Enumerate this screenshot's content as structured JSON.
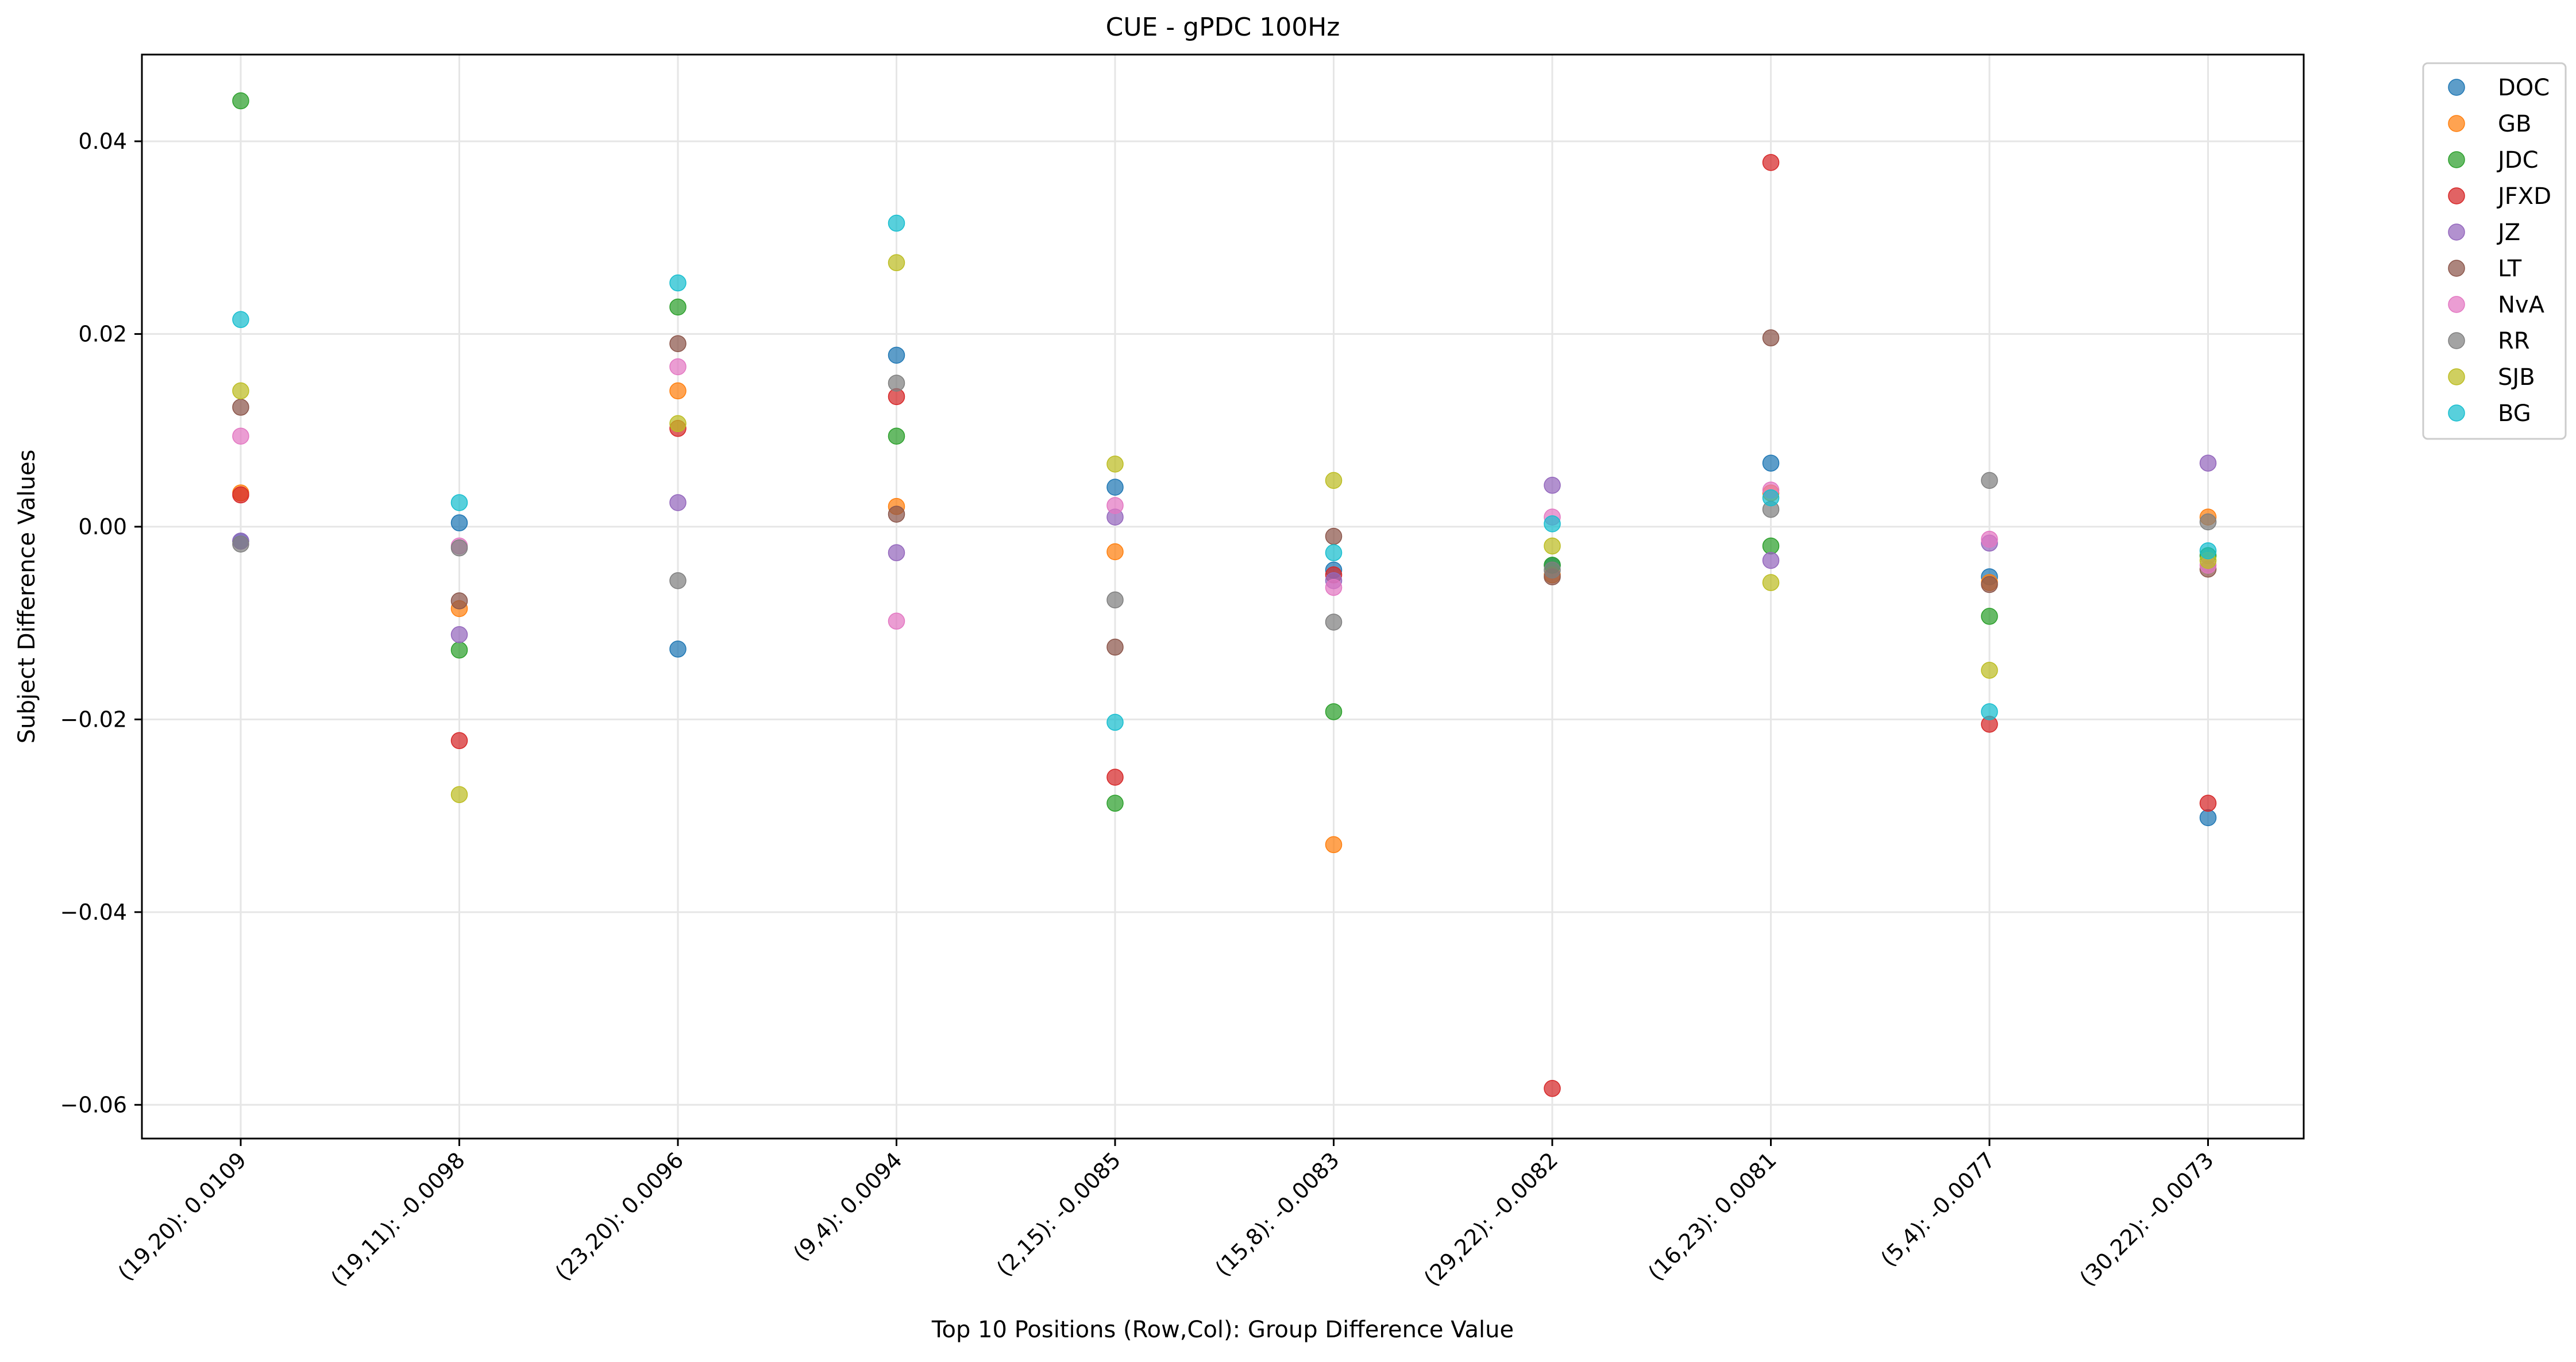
{
  "chart_data": {
    "type": "scatter",
    "title": "CUE - gPDC 100Hz",
    "xlabel": "Top 10 Positions (Row,Col): Group Difference Value",
    "ylabel": "Subject Difference Values",
    "ylim": [
      -0.0635,
      0.049
    ],
    "yticks": [
      0.04,
      0.02,
      0.0,
      -0.02,
      -0.04,
      -0.06
    ],
    "ytick_labels": [
      "0.04",
      "0.02",
      "0.00",
      "−0.02",
      "−0.04",
      "−0.06"
    ],
    "categories": [
      "(19,20): 0.0109",
      "(19,11): -0.0098",
      "(23,20): 0.0096",
      "(9,4): 0.0094",
      "(2,15): -0.0085",
      "(15,8): -0.0083",
      "(29,22): -0.0082",
      "(16,23): 0.0081",
      "(5,4): -0.0077",
      "(30,22): -0.0073"
    ],
    "grid": true,
    "legend_position": "outside-top-right",
    "series": [
      {
        "name": "DOC",
        "color": "#1f77b4",
        "values": [
          -0.0015,
          0.0004,
          -0.0127,
          0.0178,
          0.0041,
          -0.0045,
          -0.004,
          0.0066,
          -0.0052,
          -0.0302
        ]
      },
      {
        "name": "GB",
        "color": "#ff7f0e",
        "values": [
          0.0035,
          -0.0085,
          0.0141,
          0.0021,
          -0.0026,
          -0.033,
          -0.005,
          0.0035,
          -0.0058,
          0.001
        ]
      },
      {
        "name": "JDC",
        "color": "#2ca02c",
        "values": [
          0.0442,
          -0.0128,
          0.0228,
          0.0094,
          -0.0287,
          -0.0192,
          -0.004,
          -0.002,
          -0.0093,
          -0.003
        ]
      },
      {
        "name": "JFXD",
        "color": "#d62728",
        "values": [
          0.0033,
          -0.0222,
          0.0102,
          0.0135,
          -0.026,
          -0.005,
          -0.0583,
          0.0378,
          -0.0205,
          -0.0287
        ]
      },
      {
        "name": "JZ",
        "color": "#9467bd",
        "values": [
          -0.0015,
          -0.0112,
          0.0025,
          -0.0027,
          0.001,
          -0.0056,
          0.0043,
          -0.0035,
          -0.0017,
          0.0066
        ]
      },
      {
        "name": "LT",
        "color": "#8c564b",
        "values": [
          0.0124,
          -0.0077,
          0.019,
          0.0013,
          -0.0125,
          -0.001,
          -0.0052,
          0.0196,
          -0.006,
          -0.0044
        ]
      },
      {
        "name": "NvA",
        "color": "#e377c2",
        "values": [
          0.0094,
          -0.002,
          0.0166,
          -0.0098,
          0.0022,
          -0.0063,
          0.001,
          0.0038,
          -0.0013,
          -0.004
        ]
      },
      {
        "name": "RR",
        "color": "#7f7f7f",
        "values": [
          -0.0018,
          -0.0022,
          -0.0056,
          0.0149,
          -0.0076,
          -0.0099,
          -0.0045,
          0.0018,
          0.0048,
          0.0005
        ]
      },
      {
        "name": "SJB",
        "color": "#bcbd22",
        "values": [
          0.0141,
          -0.0278,
          0.0107,
          0.0274,
          0.0065,
          0.0048,
          -0.002,
          -0.0058,
          -0.0149,
          -0.0035
        ]
      },
      {
        "name": "BG",
        "color": "#17becf",
        "values": [
          0.0215,
          0.0025,
          0.0253,
          0.0315,
          -0.0203,
          -0.0027,
          0.0003,
          0.003,
          -0.0192,
          -0.0025
        ]
      }
    ]
  }
}
